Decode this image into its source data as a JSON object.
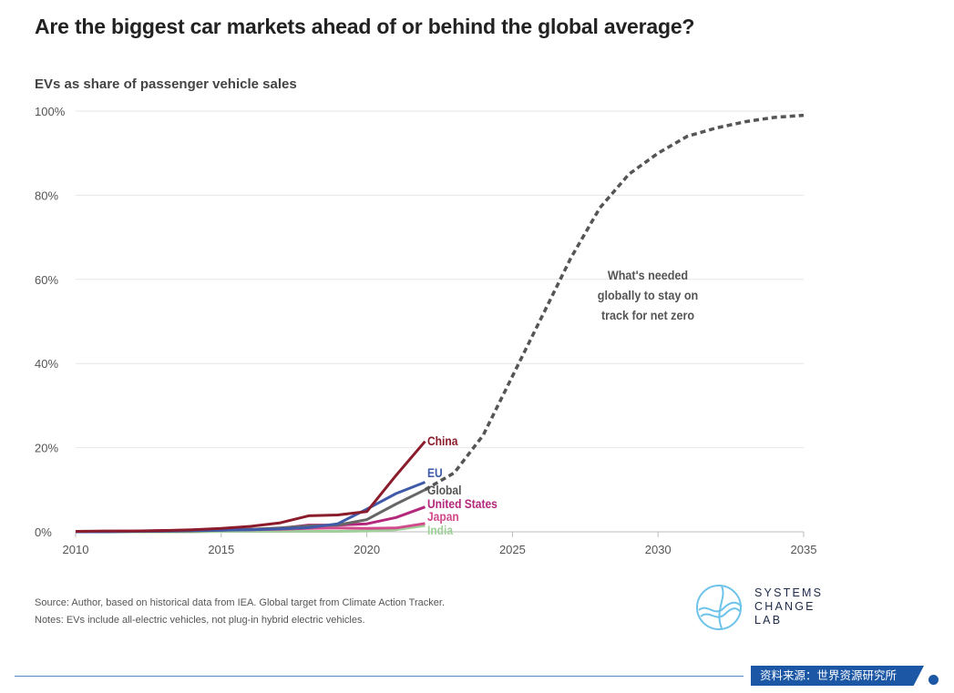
{
  "header": {
    "title": "Are the biggest car markets ahead of or behind the global average?"
  },
  "chart_data": {
    "type": "line",
    "title": "Are the biggest car markets ahead of or behind the global average?",
    "ylabel": "EVs as share of passenger vehicle sales",
    "xlabel": "",
    "xlim": [
      2010,
      2035
    ],
    "ylim": [
      0,
      100
    ],
    "xticks": [
      2010,
      2015,
      2020,
      2025,
      2030,
      2035
    ],
    "yticks": [
      0,
      20,
      40,
      60,
      80,
      100
    ],
    "ytick_labels": [
      "0%",
      "20%",
      "40%",
      "60%",
      "80%",
      "100%"
    ],
    "grid": true,
    "series": [
      {
        "name": "China",
        "color": "#8b1c2b",
        "label_color": "#8b1c2b",
        "x": [
          2010,
          2011,
          2012,
          2013,
          2014,
          2015,
          2016,
          2017,
          2018,
          2019,
          2020,
          2021,
          2022
        ],
        "y": [
          0.1,
          0.2,
          0.2,
          0.3,
          0.5,
          0.8,
          1.3,
          2.1,
          3.8,
          4.0,
          4.8,
          13.4,
          21.5
        ]
      },
      {
        "name": "EU",
        "color": "#3e5aa8",
        "label_color": "#3e5aa8",
        "x": [
          2010,
          2011,
          2012,
          2013,
          2014,
          2015,
          2016,
          2017,
          2018,
          2019,
          2020,
          2021,
          2022
        ],
        "y": [
          0,
          0,
          0.1,
          0.2,
          0.3,
          0.4,
          0.5,
          0.7,
          1.0,
          1.9,
          5.4,
          9.1,
          11.8
        ]
      },
      {
        "name": "Global",
        "color": "#666666",
        "label_color": "#555555",
        "x": [
          2010,
          2011,
          2012,
          2013,
          2014,
          2015,
          2016,
          2017,
          2018,
          2019,
          2020,
          2021,
          2022
        ],
        "y": [
          0,
          0,
          0.1,
          0.1,
          0.2,
          0.4,
          0.6,
          0.9,
          1.4,
          1.6,
          2.9,
          6.6,
          10.0
        ]
      },
      {
        "name": "United States",
        "color": "#b3287a",
        "label_color": "#b3287a",
        "x": [
          2010,
          2011,
          2012,
          2013,
          2014,
          2015,
          2016,
          2017,
          2018,
          2019,
          2020,
          2021,
          2022
        ],
        "y": [
          0,
          0.1,
          0.1,
          0.3,
          0.4,
          0.5,
          0.6,
          0.8,
          1.6,
          1.6,
          1.9,
          3.4,
          5.9
        ]
      },
      {
        "name": "Japan",
        "color": "#d14a8c",
        "label_color": "#d14a8c",
        "x": [
          2010,
          2011,
          2012,
          2013,
          2014,
          2015,
          2016,
          2017,
          2018,
          2019,
          2020,
          2021,
          2022
        ],
        "y": [
          0,
          0.1,
          0.2,
          0.3,
          0.4,
          0.5,
          0.5,
          0.6,
          0.8,
          0.9,
          0.8,
          0.9,
          2.0
        ]
      },
      {
        "name": "India",
        "color": "#9fd09a",
        "label_color": "#9fd09a",
        "x": [
          2010,
          2011,
          2012,
          2013,
          2014,
          2015,
          2016,
          2017,
          2018,
          2019,
          2020,
          2021,
          2022
        ],
        "y": [
          0,
          0,
          0,
          0,
          0,
          0.1,
          0.1,
          0.1,
          0.1,
          0.1,
          0.2,
          0.5,
          1.5
        ]
      },
      {
        "name": "Global target",
        "style": "dashed",
        "color": "#555555",
        "x": [
          2022,
          2023,
          2024,
          2025,
          2026,
          2027,
          2028,
          2029,
          2030,
          2031,
          2032,
          2033,
          2034,
          2035
        ],
        "y": [
          10.0,
          14.0,
          23.0,
          37.0,
          51.0,
          65.0,
          77.0,
          85.0,
          90.0,
          94.0,
          96.0,
          97.5,
          98.5,
          99.0
        ]
      }
    ],
    "annotations": {
      "target_label_lines": [
        "What's needed",
        "globally to stay on",
        "track for net zero"
      ]
    }
  },
  "footer": {
    "source": "Source: Author, based on historical data from IEA. Global target from Climate Action Tracker.",
    "notes": "Notes: EVs include all-electric vehicles, not plug-in hybrid electric vehicles."
  },
  "logo": {
    "line1": "SYSTEMS",
    "line2": "CHANGE",
    "line3": "LAB"
  },
  "credit": {
    "label": "资料来源：世界资源研究所"
  },
  "colors": {
    "brand_blue": "#1b57a5",
    "grid": "#e6e6e6",
    "axis": "#bbbbbb"
  }
}
